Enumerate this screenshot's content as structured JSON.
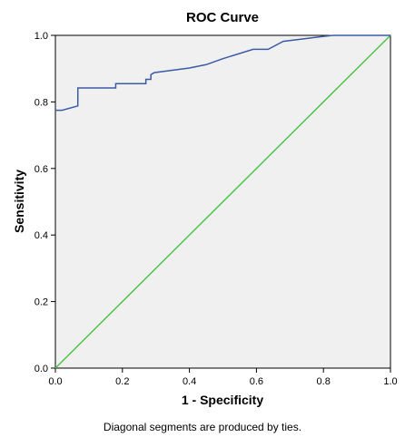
{
  "chart_data": {
    "type": "line",
    "title": "ROC Curve",
    "xlabel": "1 - Specificity",
    "ylabel": "Sensitivity",
    "xlim": [
      0,
      1
    ],
    "ylim": [
      0,
      1
    ],
    "xticks": [
      "0.0",
      "0.2",
      "0.4",
      "0.6",
      "0.8",
      "1.0"
    ],
    "yticks": [
      "0.0",
      "0.2",
      "0.4",
      "0.6",
      "0.8",
      "1.0"
    ],
    "grid": false,
    "footnote": "Diagonal segments are produced by ties.",
    "colors": {
      "plot_background": "#f0f0f0",
      "roc_curve": "#3b5ba5",
      "reference_line": "#4fc34f"
    },
    "series": [
      {
        "x": [
          0.0,
          0.02,
          0.067,
          0.067,
          0.18,
          0.18,
          0.27,
          0.27,
          0.285,
          0.285,
          0.295,
          0.4,
          0.45,
          0.5,
          0.59,
          0.635,
          0.68,
          0.8,
          0.83,
          1.0
        ],
        "y": [
          0.775,
          0.775,
          0.788,
          0.842,
          0.842,
          0.855,
          0.855,
          0.868,
          0.868,
          0.882,
          0.888,
          0.902,
          0.912,
          0.93,
          0.958,
          0.958,
          0.982,
          0.997,
          1.0,
          1.0
        ]
      },
      {
        "x": [
          0.0,
          1.0
        ],
        "y": [
          0.0,
          1.0
        ]
      }
    ]
  }
}
